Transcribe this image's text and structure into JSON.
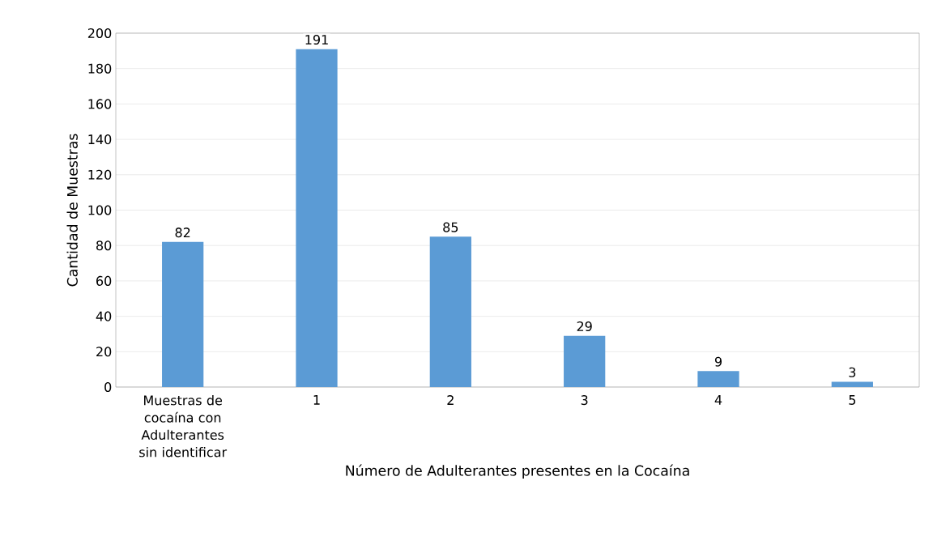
{
  "chart_data": {
    "type": "bar",
    "xlabel": "Número de Adulterantes presentes en la Cocaína",
    "ylabel": "Cantidad de Muestras",
    "categories": [
      "Muestras de cocaína con Adulterantes sin identificar",
      "1",
      "2",
      "3",
      "4",
      "5"
    ],
    "values": [
      82,
      191,
      85,
      29,
      9,
      3
    ],
    "color": "#5b9bd5",
    "ylim": [
      0,
      200
    ],
    "yticks": [
      0,
      20,
      40,
      60,
      80,
      100,
      120,
      140,
      160,
      180,
      200
    ],
    "grid": "y",
    "data_labels": true
  }
}
